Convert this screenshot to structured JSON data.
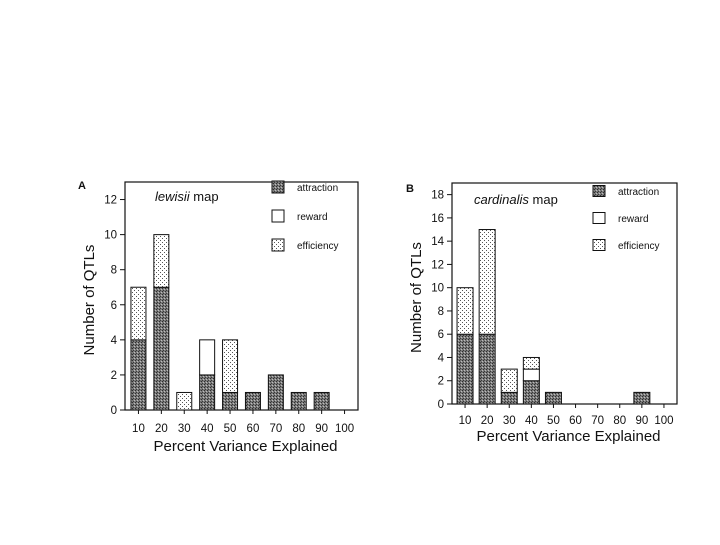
{
  "colors": {
    "attraction": "#6e6e6e",
    "reward": "#ffffff",
    "efficiency": "#e2e2e2",
    "ink": "#111111"
  },
  "chart_data": [
    {
      "type": "bar",
      "stacked": true,
      "panel_label": "A",
      "title_italic": "lewisii",
      "title_rest": " map",
      "xlabel": "Percent Variance Explained",
      "ylabel": "Number of QTLs",
      "categories": [
        "10",
        "20",
        "30",
        "40",
        "50",
        "60",
        "70",
        "80",
        "90",
        "100"
      ],
      "ylim": [
        0,
        13
      ],
      "yticks": [
        0,
        2,
        4,
        6,
        8,
        10,
        12
      ],
      "series": [
        {
          "name": "attraction",
          "key": "attraction",
          "values": [
            4,
            7,
            0,
            2,
            1,
            1,
            2,
            1,
            1,
            0
          ]
        },
        {
          "name": "reward",
          "key": "reward",
          "values": [
            0,
            0,
            0,
            2,
            0,
            0,
            0,
            0,
            0,
            0
          ]
        },
        {
          "name": "efficiency",
          "key": "efficiency",
          "values": [
            3,
            3,
            1,
            0,
            3,
            0,
            0,
            0,
            0,
            0
          ]
        }
      ],
      "legend_position": "top-right",
      "grid": false
    },
    {
      "type": "bar",
      "stacked": true,
      "panel_label": "B",
      "title_italic": "cardinalis",
      "title_rest": " map",
      "xlabel": "Percent Variance Explained",
      "ylabel": "Number of QTLs",
      "categories": [
        "10",
        "20",
        "30",
        "40",
        "50",
        "60",
        "70",
        "80",
        "90",
        "100"
      ],
      "ylim": [
        0,
        19
      ],
      "yticks": [
        0,
        2,
        4,
        6,
        8,
        10,
        12,
        14,
        16,
        18
      ],
      "series": [
        {
          "name": "attraction",
          "key": "attraction",
          "values": [
            6,
            6,
            1,
            2,
            1,
            0,
            0,
            0,
            1,
            0
          ]
        },
        {
          "name": "reward",
          "key": "reward",
          "values": [
            0,
            0,
            0,
            1,
            0,
            0,
            0,
            0,
            0,
            0
          ]
        },
        {
          "name": "efficiency",
          "key": "efficiency",
          "values": [
            4,
            9,
            2,
            1,
            0,
            0,
            0,
            0,
            0,
            0
          ]
        }
      ],
      "legend_position": "top-right",
      "grid": false
    }
  ]
}
